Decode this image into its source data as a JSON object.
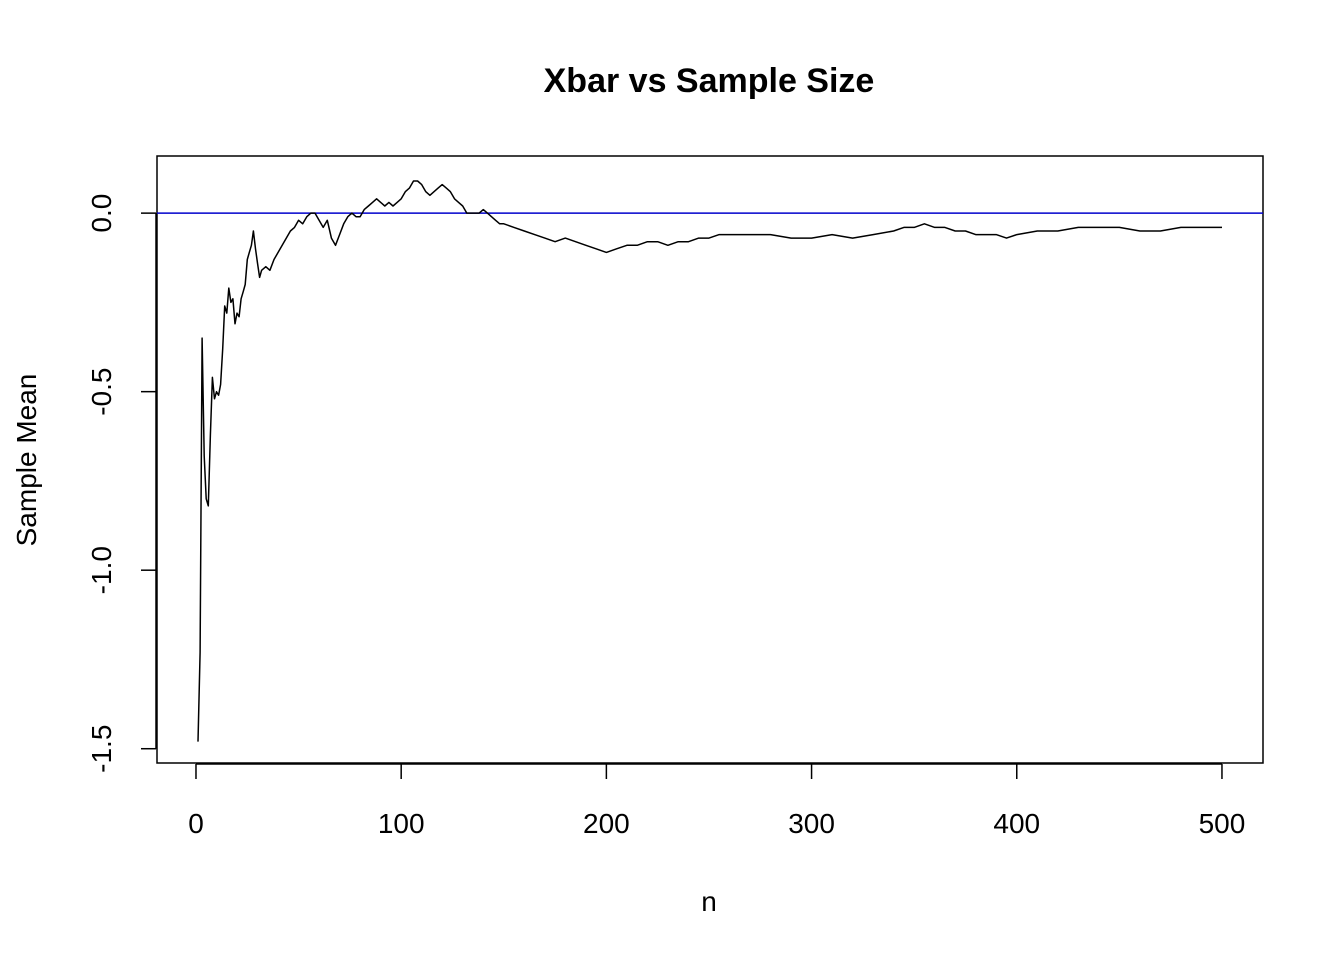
{
  "chart_data": {
    "type": "line",
    "title": "Xbar vs Sample Size",
    "xlabel": "n",
    "ylabel": "Sample Mean",
    "xlim": [
      -19,
      520
    ],
    "ylim": [
      -1.54,
      0.16
    ],
    "x_ticks": [
      0,
      100,
      200,
      300,
      400,
      500
    ],
    "x_tick_labels": [
      "0",
      "100",
      "200",
      "300",
      "400",
      "500"
    ],
    "y_ticks": [
      -1.5,
      -1.0,
      -0.5,
      0.0
    ],
    "y_tick_labels": [
      "-1.5",
      "-1.0",
      "-0.5",
      "0.0"
    ],
    "reference_line": {
      "y": 0,
      "color": "#0000cc"
    },
    "grid": false,
    "legend": "none",
    "series": [
      {
        "color": "#000000",
        "points": [
          [
            1,
            -1.48
          ],
          [
            2,
            -1.23
          ],
          [
            3,
            -0.35
          ],
          [
            4,
            -0.68
          ],
          [
            5,
            -0.8
          ],
          [
            6,
            -0.82
          ],
          [
            7,
            -0.62
          ],
          [
            8,
            -0.46
          ],
          [
            9,
            -0.52
          ],
          [
            10,
            -0.5
          ],
          [
            11,
            -0.51
          ],
          [
            12,
            -0.48
          ],
          [
            13,
            -0.38
          ],
          [
            14,
            -0.26
          ],
          [
            15,
            -0.28
          ],
          [
            16,
            -0.21
          ],
          [
            17,
            -0.25
          ],
          [
            18,
            -0.24
          ],
          [
            19,
            -0.31
          ],
          [
            20,
            -0.28
          ],
          [
            21,
            -0.29
          ],
          [
            22,
            -0.24
          ],
          [
            23,
            -0.22
          ],
          [
            24,
            -0.2
          ],
          [
            25,
            -0.13
          ],
          [
            26,
            -0.11
          ],
          [
            27,
            -0.09
          ],
          [
            28,
            -0.05
          ],
          [
            29,
            -0.1
          ],
          [
            30,
            -0.14
          ],
          [
            31,
            -0.18
          ],
          [
            32,
            -0.16
          ],
          [
            34,
            -0.15
          ],
          [
            36,
            -0.16
          ],
          [
            38,
            -0.13
          ],
          [
            40,
            -0.11
          ],
          [
            42,
            -0.09
          ],
          [
            44,
            -0.07
          ],
          [
            46,
            -0.05
          ],
          [
            48,
            -0.04
          ],
          [
            50,
            -0.02
          ],
          [
            52,
            -0.03
          ],
          [
            54,
            -0.01
          ],
          [
            56,
            0.0
          ],
          [
            58,
            0.0
          ],
          [
            60,
            -0.02
          ],
          [
            62,
            -0.04
          ],
          [
            64,
            -0.02
          ],
          [
            66,
            -0.07
          ],
          [
            68,
            -0.09
          ],
          [
            70,
            -0.06
          ],
          [
            72,
            -0.03
          ],
          [
            74,
            -0.01
          ],
          [
            76,
            0.0
          ],
          [
            78,
            -0.01
          ],
          [
            80,
            -0.01
          ],
          [
            82,
            0.01
          ],
          [
            84,
            0.02
          ],
          [
            86,
            0.03
          ],
          [
            88,
            0.04
          ],
          [
            90,
            0.03
          ],
          [
            92,
            0.02
          ],
          [
            94,
            0.03
          ],
          [
            96,
            0.02
          ],
          [
            98,
            0.03
          ],
          [
            100,
            0.04
          ],
          [
            102,
            0.06
          ],
          [
            104,
            0.07
          ],
          [
            106,
            0.09
          ],
          [
            108,
            0.09
          ],
          [
            110,
            0.08
          ],
          [
            112,
            0.06
          ],
          [
            114,
            0.05
          ],
          [
            116,
            0.06
          ],
          [
            118,
            0.07
          ],
          [
            120,
            0.08
          ],
          [
            122,
            0.07
          ],
          [
            124,
            0.06
          ],
          [
            126,
            0.04
          ],
          [
            128,
            0.03
          ],
          [
            130,
            0.02
          ],
          [
            132,
            0.0
          ],
          [
            134,
            0.0
          ],
          [
            136,
            0.0
          ],
          [
            138,
            0.0
          ],
          [
            140,
            0.01
          ],
          [
            142,
            0.0
          ],
          [
            144,
            -0.01
          ],
          [
            146,
            -0.02
          ],
          [
            148,
            -0.03
          ],
          [
            150,
            -0.03
          ],
          [
            155,
            -0.04
          ],
          [
            160,
            -0.05
          ],
          [
            165,
            -0.06
          ],
          [
            170,
            -0.07
          ],
          [
            175,
            -0.08
          ],
          [
            180,
            -0.07
          ],
          [
            185,
            -0.08
          ],
          [
            190,
            -0.09
          ],
          [
            195,
            -0.1
          ],
          [
            200,
            -0.11
          ],
          [
            205,
            -0.1
          ],
          [
            210,
            -0.09
          ],
          [
            215,
            -0.09
          ],
          [
            220,
            -0.08
          ],
          [
            225,
            -0.08
          ],
          [
            230,
            -0.09
          ],
          [
            235,
            -0.08
          ],
          [
            240,
            -0.08
          ],
          [
            245,
            -0.07
          ],
          [
            250,
            -0.07
          ],
          [
            255,
            -0.06
          ],
          [
            260,
            -0.06
          ],
          [
            265,
            -0.06
          ],
          [
            270,
            -0.06
          ],
          [
            280,
            -0.06
          ],
          [
            290,
            -0.07
          ],
          [
            300,
            -0.07
          ],
          [
            310,
            -0.06
          ],
          [
            320,
            -0.07
          ],
          [
            330,
            -0.06
          ],
          [
            340,
            -0.05
          ],
          [
            345,
            -0.04
          ],
          [
            350,
            -0.04
          ],
          [
            355,
            -0.03
          ],
          [
            360,
            -0.04
          ],
          [
            365,
            -0.04
          ],
          [
            370,
            -0.05
          ],
          [
            375,
            -0.05
          ],
          [
            380,
            -0.06
          ],
          [
            385,
            -0.06
          ],
          [
            390,
            -0.06
          ],
          [
            395,
            -0.07
          ],
          [
            400,
            -0.06
          ],
          [
            410,
            -0.05
          ],
          [
            420,
            -0.05
          ],
          [
            430,
            -0.04
          ],
          [
            440,
            -0.04
          ],
          [
            450,
            -0.04
          ],
          [
            460,
            -0.05
          ],
          [
            470,
            -0.05
          ],
          [
            480,
            -0.04
          ],
          [
            490,
            -0.04
          ],
          [
            500,
            -0.04
          ]
        ]
      }
    ]
  }
}
